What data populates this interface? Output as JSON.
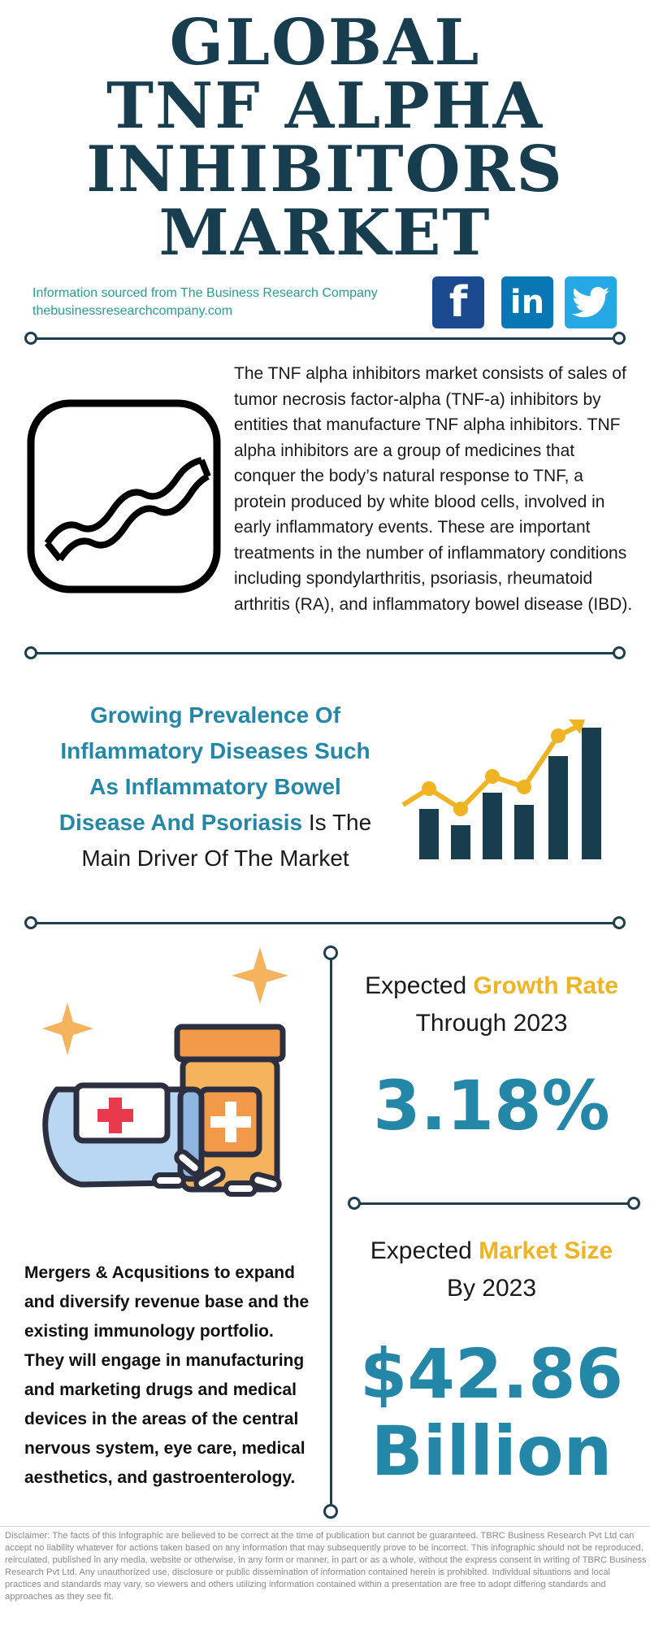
{
  "title": {
    "lines": [
      "GLOBAL",
      "TNF ALPHA",
      "INHIBITORS",
      "MARKET"
    ]
  },
  "source": {
    "line1": "Information sourced from The Business Research Company",
    "line2": "thebusinessresearchcompany.com"
  },
  "social": {
    "facebook_glyph": "f",
    "linkedin_glyph": "in"
  },
  "intro": {
    "text": "The TNF alpha inhibitors market consists of sales of tumor necrosis factor-alpha (TNF-a) inhibitors by entities that manufacture TNF alpha inhibitors. TNF alpha inhibitors are a group of medicines that conquer the body’s natural response to TNF, a protein produced by white blood cells, involved in early inflammatory events. These are important treatments in the number of inflammatory conditions including spondylarthritis, psoriasis, rheumatoid arthritis (RA), and inflammatory bowel disease (IBD)."
  },
  "driver": {
    "highlight": "Growing Prevalence Of Inflammatory Diseases Such As Inflammatory Bowel Disease And Psoriasis",
    "plain_1": " Is The",
    "plain_2": "Main Driver Of The Market"
  },
  "growth": {
    "label_pre": "Expected ",
    "label_highlight": "Growth Rate",
    "label_line2": "Through 2023",
    "value": "3.18%"
  },
  "market_size": {
    "label_pre": "Expected ",
    "label_highlight": "Market Size",
    "label_line2": "By 2023",
    "value_line1": "$42.86",
    "value_line2": "Billion"
  },
  "mna": {
    "text": "Mergers & Acqusitions to expand and diversify revenue base and the existing immunology portfolio. They will engage in manufacturing and marketing drugs and medical devices in the areas of the central nervous system, eye care, medical aesthetics, and gastroenterology."
  },
  "disclaimer": {
    "text": "Disclaimer: The facts of this infographic are believed to be correct at the time of publication but cannot be guaranteed. TBRC Business Research Pvt Ltd can accept no liability whatever for actions taken based on any information that may subsequently prove to be incorrect. This infographic should not be reproduced, reirculated, published in any media, website or otherwise, in any form or manner, in part or as a whole, without the express consent in writing of TBRC Business Research Pvt Ltd. Any unauthorized use, disclosure or public dissemination of information contained herein is prohibited. Individual situations and local practices and standards may vary, so viewers and others utilizing information contained within a presentation are free to adopt differing standards and approaches as they see fit."
  },
  "colors": {
    "navy": "#173d4f",
    "teal_blue": "#2587a8",
    "gold": "#f0b323",
    "source_green": "#2a9d8f"
  },
  "icons": [
    "facebook-icon",
    "linkedin-icon",
    "twitter-icon",
    "dna-icon",
    "growth-chart-icon",
    "pill-bottles-icon",
    "sparkle-icon"
  ]
}
